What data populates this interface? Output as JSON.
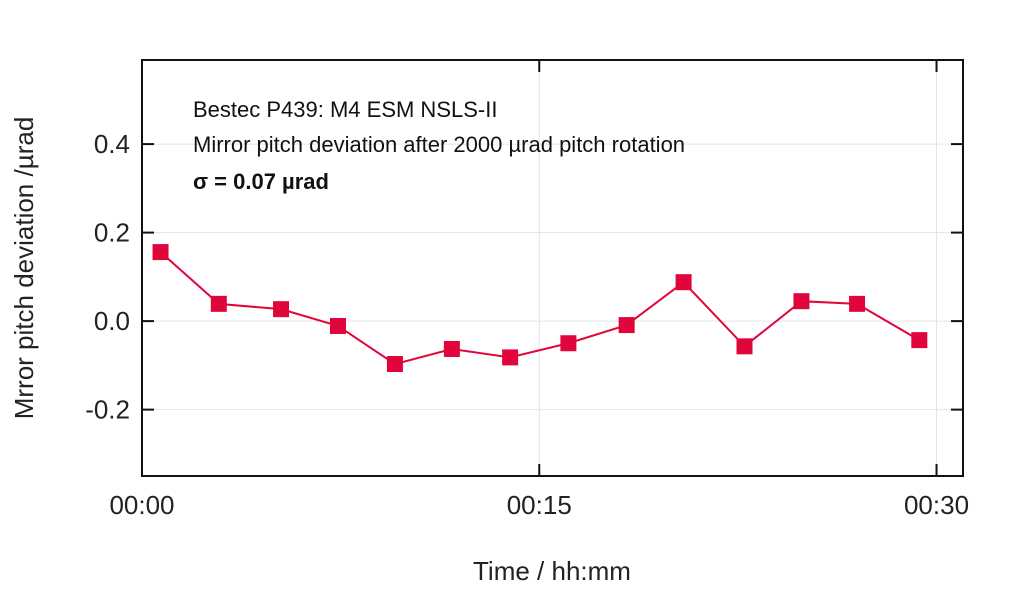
{
  "chart_data": {
    "type": "line",
    "title": "",
    "annotations": [
      "Bestec P439: M4 ESM NSLS-II",
      "Mirror pitch deviation after 2000 µrad pitch rotation",
      "σ = 0.07 µrad"
    ],
    "xlabel": "Time / hh:mm",
    "ylabel": "Mrror pitch deviation /µrad",
    "xlim": [
      0,
      31
    ],
    "ylim": [
      -0.35,
      0.59
    ],
    "x_unit": "minutes",
    "xticks": [
      0,
      15,
      30
    ],
    "xtick_labels": [
      "00:00",
      "00:15",
      "00:30"
    ],
    "yticks": [
      0.4,
      0.2,
      0.0,
      -0.2
    ],
    "ytick_labels": [
      "0.4",
      "0.2",
      "0.0",
      "-0.2"
    ],
    "grid": true,
    "series": [
      {
        "name": "Mirror pitch deviation",
        "color": "#e0063c",
        "marker": "square",
        "x": [
          0.7,
          2.9,
          5.25,
          7.4,
          9.55,
          11.7,
          13.9,
          16.1,
          18.3,
          20.45,
          22.75,
          24.9,
          27.0,
          29.35
        ],
        "y": [
          0.156,
          0.039,
          0.027,
          -0.011,
          -0.097,
          -0.063,
          -0.082,
          -0.05,
          -0.009,
          0.088,
          -0.057,
          0.045,
          0.039,
          -0.043
        ]
      }
    ]
  }
}
